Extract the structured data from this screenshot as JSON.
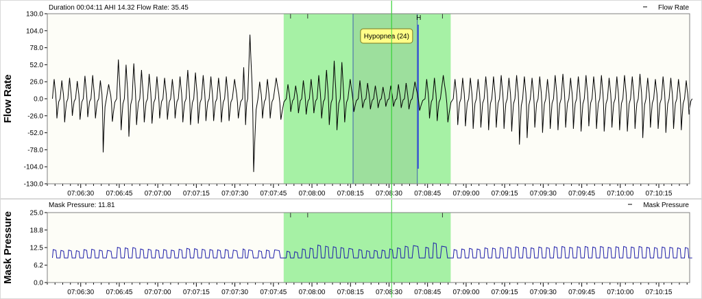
{
  "colors": {
    "background": "#ffffff",
    "plot_bg": "#fdfdf7",
    "border": "#7f7f7f",
    "separator": "#d8d8d8",
    "flow_line": "#000000",
    "pressure_line": "#1a1aa8",
    "highlight": "#90ee90",
    "event_box": "#9ad79a",
    "event_box_stroke": "#4060b0",
    "event_marker": "#3f5fd0",
    "crosshair": "#3cd23c",
    "callout_bg": "#ffff88",
    "callout_border": "#7a7a22"
  },
  "chart_data": [
    {
      "type": "line",
      "ylabel": "Flow Rate",
      "info": "Duration 00:04:11 AHI 14.32 Flow Rate: 35.45",
      "legend": "Flow Rate",
      "legend_position": "top-right",
      "ylim": [
        -130,
        130
      ],
      "yticks": [
        "130.0",
        "104.0",
        "78.0",
        "52.0",
        "26.0",
        "0.0",
        "-26.0",
        "-52.0",
        "-78.0",
        "-104.0",
        "-130.0"
      ],
      "x_start": "07:06:17",
      "x_end": "07:10:27",
      "xticks": [
        "07:06:30",
        "07:06:45",
        "07:07:00",
        "07:07:15",
        "07:07:30",
        "07:07:45",
        "07:08:00",
        "07:08:15",
        "07:08:30",
        "07:08:45",
        "07:09:00",
        "07:09:15",
        "07:09:30",
        "07:09:45",
        "07:10:00",
        "07:10:15"
      ],
      "highlight_range": [
        "07:07:49",
        "07:08:54"
      ],
      "crosshair": "07:08:31",
      "event": {
        "label": "Hypopnea (24)",
        "start": "07:08:16",
        "end": "07:08:41",
        "marker_label": "H"
      },
      "breaths": [
        {
          "t": "07:06:19",
          "peak": 30,
          "trough": -30
        },
        {
          "t": "07:06:22",
          "peak": 28,
          "trough": -36
        },
        {
          "t": "07:06:25",
          "peak": 32,
          "trough": -26
        },
        {
          "t": "07:06:28",
          "peak": 27,
          "trough": -32
        },
        {
          "t": "07:06:31",
          "peak": 35,
          "trough": -28
        },
        {
          "t": "07:06:34",
          "peak": 36,
          "trough": -30
        },
        {
          "t": "07:06:37",
          "peak": 28,
          "trough": -82
        },
        {
          "t": "07:06:40",
          "peak": 22,
          "trough": -35
        },
        {
          "t": "07:06:44",
          "peak": 60,
          "trough": -48
        },
        {
          "t": "07:06:47",
          "peak": 52,
          "trough": -58
        },
        {
          "t": "07:06:50",
          "peak": 54,
          "trough": -40
        },
        {
          "t": "07:06:53",
          "peak": 44,
          "trough": -36
        },
        {
          "t": "07:06:56",
          "peak": 38,
          "trough": -38
        },
        {
          "t": "07:06:59",
          "peak": 34,
          "trough": -30
        },
        {
          "t": "07:07:02",
          "peak": 32,
          "trough": -32
        },
        {
          "t": "07:07:05",
          "peak": 30,
          "trough": -30
        },
        {
          "t": "07:07:08",
          "peak": 34,
          "trough": -36
        },
        {
          "t": "07:07:11",
          "peak": 44,
          "trough": -40
        },
        {
          "t": "07:07:14",
          "peak": 40,
          "trough": -38
        },
        {
          "t": "07:07:17",
          "peak": 36,
          "trough": -34
        },
        {
          "t": "07:07:20",
          "peak": 34,
          "trough": -34
        },
        {
          "t": "07:07:23",
          "peak": 32,
          "trough": -36
        },
        {
          "t": "07:07:26",
          "peak": 34,
          "trough": -34
        },
        {
          "t": "07:07:29",
          "peak": 30,
          "trough": -30
        },
        {
          "t": "07:07:33",
          "peak": 48,
          "trough": -40
        },
        {
          "t": "07:07:35",
          "peak": 98,
          "trough": -112
        },
        {
          "t": "07:07:39",
          "peak": 26,
          "trough": -30
        },
        {
          "t": "07:07:42",
          "peak": 30,
          "trough": -30
        },
        {
          "t": "07:07:45",
          "peak": 32,
          "trough": -32
        },
        {
          "t": "07:07:50",
          "peak": 22,
          "trough": -20
        },
        {
          "t": "07:07:53",
          "peak": 20,
          "trough": -22
        },
        {
          "t": "07:07:56",
          "peak": 28,
          "trough": -24
        },
        {
          "t": "07:07:59",
          "peak": 30,
          "trough": -22
        },
        {
          "t": "07:08:02",
          "peak": 36,
          "trough": -30
        },
        {
          "t": "07:08:05",
          "peak": 44,
          "trough": -40
        },
        {
          "t": "07:08:08",
          "peak": 58,
          "trough": -48
        },
        {
          "t": "07:08:11",
          "peak": 56,
          "trough": -36
        },
        {
          "t": "07:08:14",
          "peak": 30,
          "trough": -20
        },
        {
          "t": "07:08:18",
          "peak": 28,
          "trough": -14
        },
        {
          "t": "07:08:21",
          "peak": 24,
          "trough": -16
        },
        {
          "t": "07:08:24",
          "peak": 20,
          "trough": -14
        },
        {
          "t": "07:08:27",
          "peak": 18,
          "trough": -12
        },
        {
          "t": "07:08:30",
          "peak": 20,
          "trough": -12
        },
        {
          "t": "07:08:33",
          "peak": 22,
          "trough": -14
        },
        {
          "t": "07:08:36",
          "peak": 24,
          "trough": -16
        },
        {
          "t": "07:08:39",
          "peak": 26,
          "trough": -18
        },
        {
          "t": "07:08:44",
          "peak": 30,
          "trough": -30
        },
        {
          "t": "07:08:47",
          "peak": 32,
          "trough": -34
        },
        {
          "t": "07:08:50",
          "peak": 36,
          "trough": -36
        },
        {
          "t": "07:08:55",
          "peak": 30,
          "trough": -40
        },
        {
          "t": "07:08:58",
          "peak": 32,
          "trough": -42
        },
        {
          "t": "07:09:01",
          "peak": 32,
          "trough": -46
        },
        {
          "t": "07:09:04",
          "peak": 30,
          "trough": -44
        },
        {
          "t": "07:09:07",
          "peak": 34,
          "trough": -48
        },
        {
          "t": "07:09:10",
          "peak": 34,
          "trough": -44
        },
        {
          "t": "07:09:13",
          "peak": 36,
          "trough": -46
        },
        {
          "t": "07:09:16",
          "peak": 32,
          "trough": -50
        },
        {
          "t": "07:09:19",
          "peak": 36,
          "trough": -70
        },
        {
          "t": "07:09:22",
          "peak": 34,
          "trough": -60
        },
        {
          "t": "07:09:25",
          "peak": 32,
          "trough": -44
        },
        {
          "t": "07:09:28",
          "peak": 34,
          "trough": -52
        },
        {
          "t": "07:09:31",
          "peak": 30,
          "trough": -46
        },
        {
          "t": "07:09:34",
          "peak": 36,
          "trough": -48
        },
        {
          "t": "07:09:37",
          "peak": 38,
          "trough": -44
        },
        {
          "t": "07:09:40",
          "peak": 32,
          "trough": -46
        },
        {
          "t": "07:09:43",
          "peak": 34,
          "trough": -50
        },
        {
          "t": "07:09:46",
          "peak": 36,
          "trough": -42
        },
        {
          "t": "07:09:49",
          "peak": 34,
          "trough": -46
        },
        {
          "t": "07:09:52",
          "peak": 36,
          "trough": -50
        },
        {
          "t": "07:09:55",
          "peak": 32,
          "trough": -44
        },
        {
          "t": "07:09:58",
          "peak": 34,
          "trough": -48
        },
        {
          "t": "07:10:01",
          "peak": 36,
          "trough": -50
        },
        {
          "t": "07:10:04",
          "peak": 34,
          "trough": -46
        },
        {
          "t": "07:10:07",
          "peak": 38,
          "trough": -60
        },
        {
          "t": "07:10:10",
          "peak": 32,
          "trough": -44
        },
        {
          "t": "07:10:13",
          "peak": 30,
          "trough": -46
        },
        {
          "t": "07:10:16",
          "peak": 34,
          "trough": -52
        },
        {
          "t": "07:10:19",
          "peak": 32,
          "trough": -46
        },
        {
          "t": "07:10:22",
          "peak": 30,
          "trough": -48
        },
        {
          "t": "07:10:25",
          "peak": 28,
          "trough": -24
        }
      ]
    },
    {
      "type": "line",
      "ylabel": "Mask Pressure",
      "info": "Mask Pressure: 11.81",
      "legend": "Mask Pressure",
      "legend_position": "top-right",
      "ylim": [
        0,
        25
      ],
      "yticks": [
        "25.0",
        "18.8",
        "12.5",
        "6.2",
        "0.0"
      ],
      "baseline": 8.8,
      "x_start": "07:06:17",
      "x_end": "07:10:27",
      "xticks": [
        "07:06:30",
        "07:06:45",
        "07:07:00",
        "07:07:15",
        "07:07:30",
        "07:07:45",
        "07:08:00",
        "07:08:15",
        "07:08:30",
        "07:08:45",
        "07:09:00",
        "07:09:15",
        "07:09:30",
        "07:09:45",
        "07:10:00",
        "07:10:15"
      ],
      "highlight_range": [
        "07:07:49",
        "07:08:54"
      ],
      "crosshair": "07:08:31",
      "peaks": [
        {
          "t": "07:06:19",
          "v": 11.8
        },
        {
          "t": "07:06:22",
          "v": 11.5
        },
        {
          "t": "07:06:25",
          "v": 11.6
        },
        {
          "t": "07:06:28",
          "v": 11.4
        },
        {
          "t": "07:06:31",
          "v": 11.8
        },
        {
          "t": "07:06:34",
          "v": 11.9
        },
        {
          "t": "07:06:37",
          "v": 11.6
        },
        {
          "t": "07:06:40",
          "v": 11.5
        },
        {
          "t": "07:06:44",
          "v": 12.6
        },
        {
          "t": "07:06:47",
          "v": 12.4
        },
        {
          "t": "07:06:50",
          "v": 12.5
        },
        {
          "t": "07:06:53",
          "v": 12.0
        },
        {
          "t": "07:06:56",
          "v": 11.9
        },
        {
          "t": "07:06:59",
          "v": 11.7
        },
        {
          "t": "07:07:02",
          "v": 11.8
        },
        {
          "t": "07:07:05",
          "v": 11.6
        },
        {
          "t": "07:07:08",
          "v": 11.9
        },
        {
          "t": "07:07:11",
          "v": 12.2
        },
        {
          "t": "07:07:14",
          "v": 12.1
        },
        {
          "t": "07:07:17",
          "v": 11.9
        },
        {
          "t": "07:07:20",
          "v": 11.8
        },
        {
          "t": "07:07:23",
          "v": 11.7
        },
        {
          "t": "07:07:26",
          "v": 11.8
        },
        {
          "t": "07:07:29",
          "v": 11.6
        },
        {
          "t": "07:07:33",
          "v": 12.0
        },
        {
          "t": "07:07:35",
          "v": 11.7
        },
        {
          "t": "07:07:39",
          "v": 11.4
        },
        {
          "t": "07:07:42",
          "v": 11.6
        },
        {
          "t": "07:07:45",
          "v": 11.7
        },
        {
          "t": "07:07:50",
          "v": 11.2
        },
        {
          "t": "07:07:53",
          "v": 11.0
        },
        {
          "t": "07:07:56",
          "v": 12.0
        },
        {
          "t": "07:07:59",
          "v": 12.3
        },
        {
          "t": "07:08:02",
          "v": 13.4
        },
        {
          "t": "07:08:05",
          "v": 13.0
        },
        {
          "t": "07:08:08",
          "v": 12.8
        },
        {
          "t": "07:08:11",
          "v": 12.5
        },
        {
          "t": "07:08:14",
          "v": 12.2
        },
        {
          "t": "07:08:18",
          "v": 11.8
        },
        {
          "t": "07:08:21",
          "v": 11.4
        },
        {
          "t": "07:08:24",
          "v": 11.5
        },
        {
          "t": "07:08:27",
          "v": 11.6
        },
        {
          "t": "07:08:30",
          "v": 12.0
        },
        {
          "t": "07:08:33",
          "v": 12.4
        },
        {
          "t": "07:08:36",
          "v": 13.0
        },
        {
          "t": "07:08:39",
          "v": 13.2
        },
        {
          "t": "07:08:44",
          "v": 12.6
        },
        {
          "t": "07:08:47",
          "v": 14.2
        },
        {
          "t": "07:08:50",
          "v": 13.0
        },
        {
          "t": "07:08:55",
          "v": 11.8
        },
        {
          "t": "07:08:58",
          "v": 12.0
        },
        {
          "t": "07:09:01",
          "v": 12.2
        },
        {
          "t": "07:09:04",
          "v": 12.0
        },
        {
          "t": "07:09:07",
          "v": 12.4
        },
        {
          "t": "07:09:10",
          "v": 12.3
        },
        {
          "t": "07:09:13",
          "v": 12.5
        },
        {
          "t": "07:09:16",
          "v": 12.6
        },
        {
          "t": "07:09:19",
          "v": 12.8
        },
        {
          "t": "07:09:22",
          "v": 12.6
        },
        {
          "t": "07:09:25",
          "v": 12.4
        },
        {
          "t": "07:09:28",
          "v": 12.7
        },
        {
          "t": "07:09:31",
          "v": 12.5
        },
        {
          "t": "07:09:34",
          "v": 12.8
        },
        {
          "t": "07:09:37",
          "v": 12.9
        },
        {
          "t": "07:09:40",
          "v": 12.6
        },
        {
          "t": "07:09:43",
          "v": 12.8
        },
        {
          "t": "07:09:46",
          "v": 12.9
        },
        {
          "t": "07:09:49",
          "v": 12.7
        },
        {
          "t": "07:09:52",
          "v": 12.9
        },
        {
          "t": "07:09:55",
          "v": 12.6
        },
        {
          "t": "07:09:58",
          "v": 12.8
        },
        {
          "t": "07:10:01",
          "v": 12.9
        },
        {
          "t": "07:10:04",
          "v": 12.7
        },
        {
          "t": "07:10:07",
          "v": 12.9
        },
        {
          "t": "07:10:10",
          "v": 12.6
        },
        {
          "t": "07:10:13",
          "v": 12.5
        },
        {
          "t": "07:10:16",
          "v": 12.7
        },
        {
          "t": "07:10:19",
          "v": 12.6
        },
        {
          "t": "07:10:22",
          "v": 12.4
        },
        {
          "t": "07:10:25",
          "v": 12.5
        }
      ]
    }
  ]
}
